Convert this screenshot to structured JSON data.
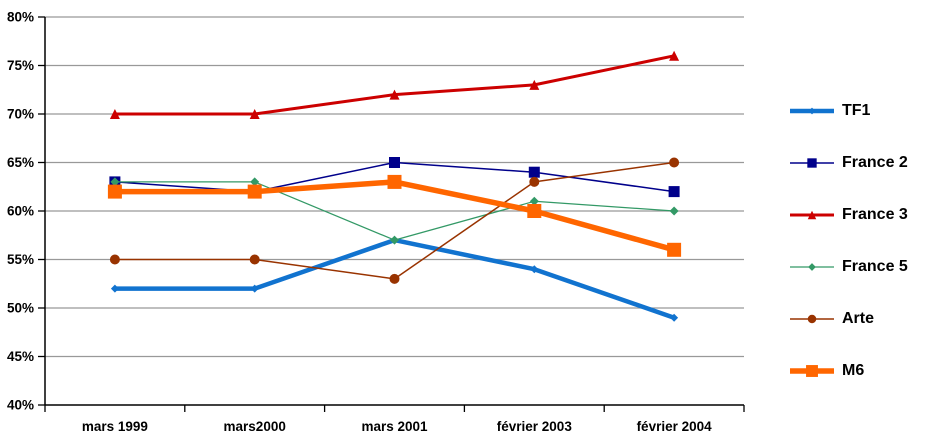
{
  "chart_data": {
    "type": "line",
    "title": "",
    "categories": [
      "mars 1999",
      "mars2000",
      "mars 2001",
      "février 2003",
      "février 2004"
    ],
    "series": [
      {
        "name": "TF1",
        "values": [
          52,
          52,
          57,
          54,
          49
        ],
        "color": "#1173CF",
        "marker": "diamond",
        "line_width": 4.5,
        "marker_size": 8
      },
      {
        "name": "France 2",
        "values": [
          63,
          62,
          65,
          64,
          62
        ],
        "color": "#00008B",
        "marker": "square",
        "line_width": 1.5,
        "marker_size": 11
      },
      {
        "name": "France 3",
        "values": [
          70,
          70,
          72,
          73,
          76
        ],
        "color": "#CC0000",
        "marker": "triangle",
        "line_width": 3,
        "marker_size": 10
      },
      {
        "name": "France 5",
        "values": [
          63,
          63,
          57,
          61,
          60
        ],
        "color": "#339966",
        "marker": "diamond",
        "line_width": 1.25,
        "marker_size": 9
      },
      {
        "name": "Arte",
        "values": [
          55,
          55,
          53,
          63,
          65
        ],
        "color": "#993300",
        "marker": "circle",
        "line_width": 1.5,
        "marker_size": 10
      },
      {
        "name": "M6",
        "values": [
          62,
          62,
          63,
          60,
          56
        ],
        "color": "#FF6600",
        "marker": "square",
        "line_width": 5.5,
        "marker_size": 14
      }
    ],
    "ylim": [
      40,
      80
    ],
    "ytick_step": 5,
    "yticks": [
      "40%",
      "45%",
      "50%",
      "55%",
      "60%",
      "65%",
      "70%",
      "75%",
      "80%"
    ],
    "grid": true,
    "legend_position": "right"
  },
  "colors": {
    "background": "#FFFFFF",
    "gridline": "#999999",
    "axis": "#000000",
    "text": "#000000"
  }
}
